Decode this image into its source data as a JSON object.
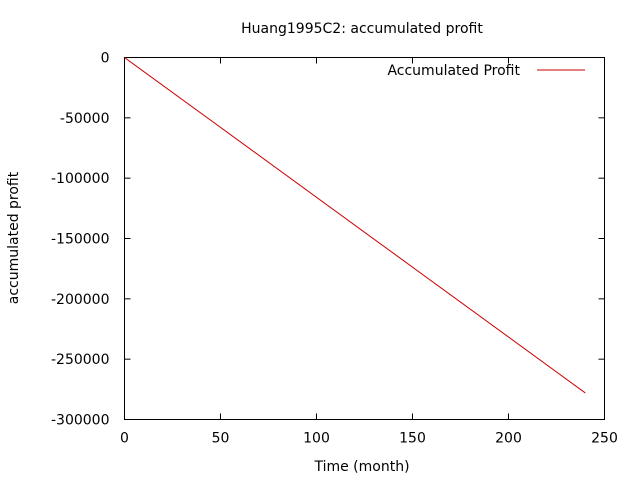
{
  "chart_data": {
    "type": "line",
    "title": "Huang1995C2: accumulated profit",
    "xlabel": "Time (month)",
    "ylabel": "accumulated profit",
    "xlim": [
      0,
      250
    ],
    "ylim": [
      -300000,
      0
    ],
    "xticks": [
      0,
      50,
      100,
      150,
      200,
      250
    ],
    "yticks": [
      0,
      -50000,
      -100000,
      -150000,
      -200000,
      -250000,
      -300000
    ],
    "grid": false,
    "legend_position": "top-right",
    "series": [
      {
        "name": "Accumulated Profit",
        "color": "#cc0000",
        "x": [
          0,
          240
        ],
        "y": [
          0,
          -278000
        ]
      }
    ]
  }
}
